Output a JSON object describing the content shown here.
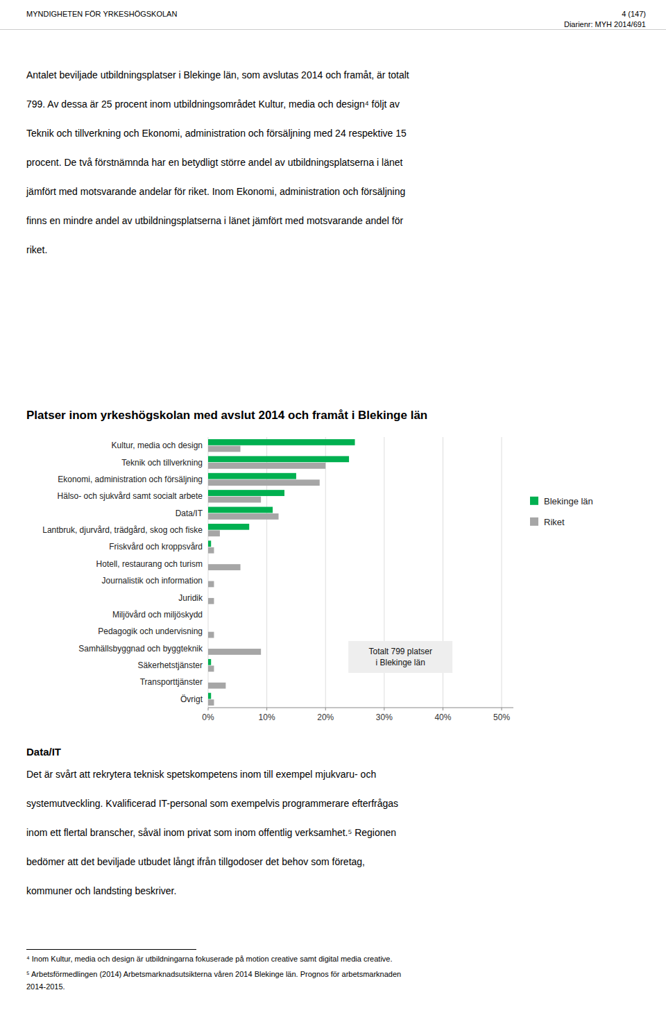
{
  "header_left": "MYNDIGHETEN FÖR YRKESHÖGSKOLAN",
  "header_right": [
    "4 (147)",
    "Diarienr: MYH 2014/691"
  ],
  "paragraphs": [
    [
      "Antalet beviljade utbildningsplatser i Blekinge län, som avslutas 2014 och framåt, är totalt",
      "799. Av dessa är 25 procent inom utbildningsområdet Kultur, media och design⁴ följt av",
      "Teknik och tillverkning och Ekonomi, administration och försäljning med 24 respektive 15",
      "procent. De två förstnämnda har en betydligt större andel av utbildningsplatserna i länet",
      "jämfört med motsvarande andelar för riket. Inom Ekonomi, administration och försäljning",
      "finns en mindre andel av utbildningsplatserna i länet jämfört med motsvarande andel för",
      "riket."
    ],
    [
      "Det är svårt att rekrytera teknisk spetskompetens inom till exempel mjukvaru- och",
      "systemutveckling. Kvalificerad IT-personal som exempelvis programmerare efterfrågas",
      "inom ett flertal branscher, såväl inom privat som inom offentlig verksamhet.⁵ Regionen",
      "bedömer att det beviljade utbudet långt ifrån tillgodoser det behov som företag,",
      "kommuner och landsting beskriver."
    ]
  ],
  "section_title": "Data/IT",
  "footnotes": [
    [
      "⁴ Inom Kultur, media och design är utbildningarna fokuserade på motion creative samt digital media creative."
    ],
    [
      "⁵ Arbetsförmedlingen (2014) Arbetsmarknadsutsikterna våren 2014 Blekinge län. Prognos för arbetsmarknaden",
      "2014-2015."
    ]
  ],
  "chart_data": {
    "type": "bar",
    "orientation": "horizontal",
    "title": "Platser inom yrkeshögskolan med avslut 2014 och framåt i Blekinge län",
    "categories": [
      "Kultur, media och design",
      "Teknik och tillverkning",
      "Ekonomi, administration och försäljning",
      "Hälso- och sjukvård samt socialt arbete",
      "Data/IT",
      "Lantbruk, djurvård, trädgård, skog och fiske",
      "Friskvård och kroppsvård",
      "Hotell, restaurang och turism",
      "Journalistik och information",
      "Juridik",
      "Miljövård och miljöskydd",
      "Pedagogik och undervisning",
      "Samhällsbyggnad och byggteknik",
      "Säkerhetstjänster",
      "Transporttjänster",
      "Övrigt"
    ],
    "series": [
      {
        "name": "Blekinge län",
        "color": "#00b050",
        "values": [
          0.25,
          0.24,
          0.15,
          0.13,
          0.11,
          0.07,
          0.005,
          0.0,
          0.0,
          0.0,
          0.0,
          0.0,
          0.0,
          0.005,
          0.0,
          0.005
        ]
      },
      {
        "name": "Riket",
        "color": "#a6a6a6",
        "values": [
          0.055,
          0.2,
          0.19,
          0.09,
          0.12,
          0.02,
          0.01,
          0.055,
          0.01,
          0.01,
          0.0,
          0.01,
          0.09,
          0.01,
          0.03,
          0.01
        ]
      }
    ],
    "xlim": [
      0,
      0.52
    ],
    "xticks": [
      {
        "value": 0.0,
        "label": "0%"
      },
      {
        "value": 0.1,
        "label": "10%"
      },
      {
        "value": 0.2,
        "label": "20%"
      },
      {
        "value": 0.3,
        "label": "30%"
      },
      {
        "value": 0.4,
        "label": "40%"
      },
      {
        "value": 0.5,
        "label": "50%"
      }
    ],
    "grid": true,
    "legend": "right",
    "annotation": "Totalt 799 platser\ni Blekinge län"
  }
}
